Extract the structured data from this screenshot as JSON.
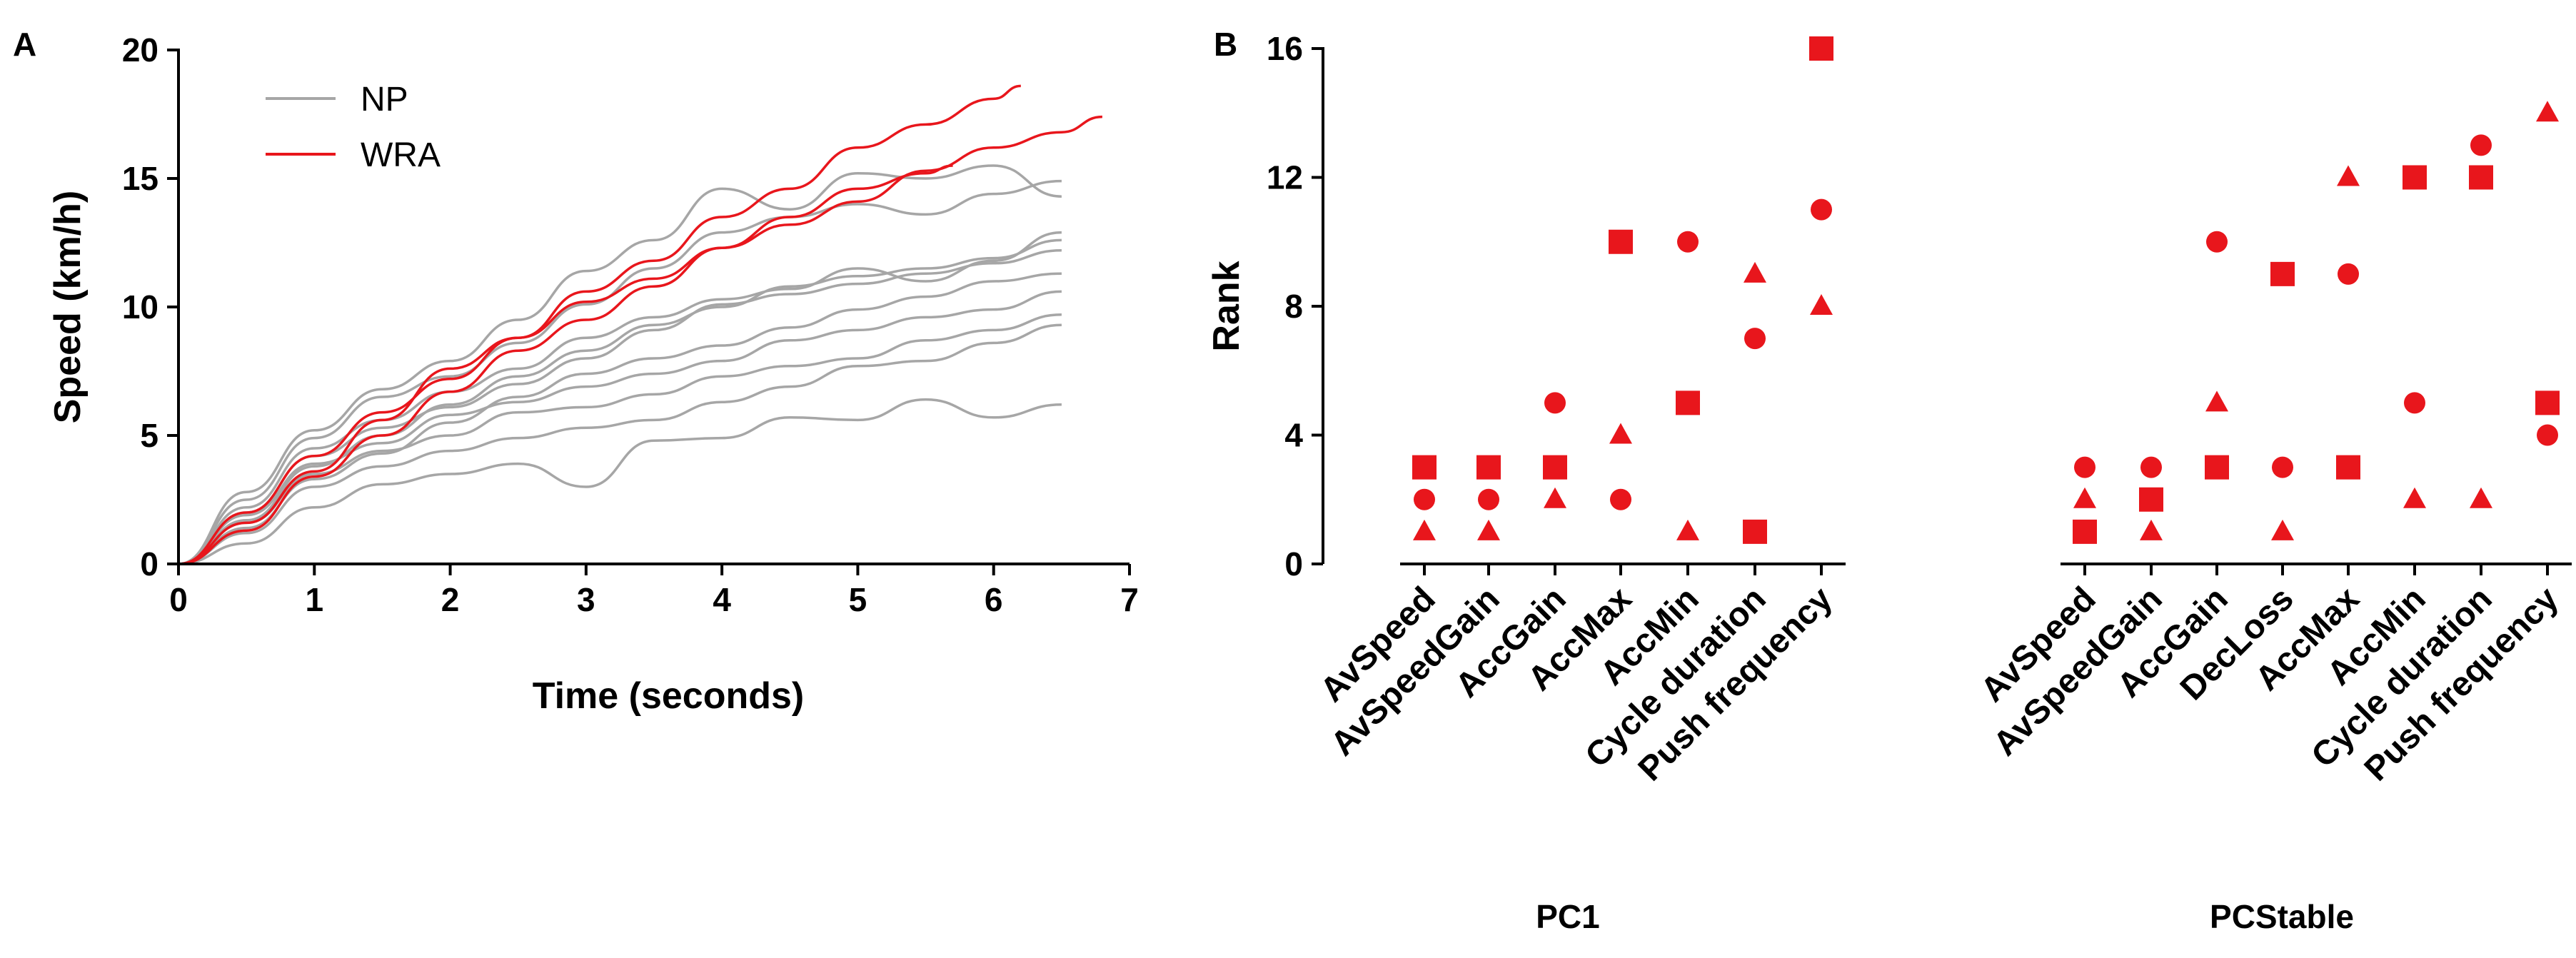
{
  "chart_data": [
    {
      "panel": "A",
      "type": "line",
      "xlabel": "Time  (seconds)",
      "ylabel": "Speed  (km/h)",
      "xlim": [
        0,
        7
      ],
      "ylim": [
        0,
        20
      ],
      "xticks": [
        0,
        1,
        2,
        3,
        4,
        5,
        6,
        7
      ],
      "yticks": [
        0,
        5,
        10,
        15,
        20
      ],
      "legend": [
        {
          "name": "NP",
          "color": "#a6a6a6"
        },
        {
          "name": "WRA",
          "color": "#e8161c"
        }
      ],
      "series": [
        {
          "name": "NP",
          "group": "NP",
          "color": "#a6a6a6",
          "x": [
            0,
            0.5,
            1,
            1.5,
            2,
            2.5,
            3,
            3.5,
            4,
            4.5,
            5,
            5.5,
            6,
            6.5
          ],
          "y": [
            0,
            0.8,
            2.2,
            3.1,
            3.5,
            3.9,
            3.0,
            4.8,
            4.9,
            5.7,
            5.6,
            6.4,
            5.7,
            6.2
          ]
        },
        {
          "name": "NP",
          "group": "NP",
          "color": "#a6a6a6",
          "x": [
            0,
            0.5,
            1,
            1.5,
            2,
            2.5,
            3,
            3.5,
            4,
            4.5,
            5,
            5.5,
            6,
            6.5
          ],
          "y": [
            0,
            1.2,
            3.0,
            3.8,
            4.4,
            4.9,
            5.3,
            5.6,
            6.3,
            6.9,
            7.7,
            7.9,
            8.6,
            9.3
          ]
        },
        {
          "name": "NP",
          "group": "NP",
          "color": "#a6a6a6",
          "x": [
            0,
            0.5,
            1,
            1.5,
            2,
            2.5,
            3,
            3.5,
            4,
            4.5,
            5,
            5.5,
            6,
            6.5
          ],
          "y": [
            0,
            1.6,
            3.5,
            4.4,
            5.0,
            5.9,
            6.1,
            6.6,
            7.3,
            7.7,
            8.0,
            8.7,
            9.1,
            9.7
          ]
        },
        {
          "name": "NP",
          "group": "NP",
          "color": "#a6a6a6",
          "x": [
            0,
            0.5,
            1,
            1.5,
            2,
            2.5,
            3,
            3.5,
            4,
            4.5,
            5,
            5.5,
            6,
            6.5
          ],
          "y": [
            0,
            1.9,
            3.9,
            4.7,
            5.8,
            6.3,
            6.9,
            7.4,
            7.9,
            8.7,
            9.1,
            9.6,
            9.9,
            10.6
          ]
        },
        {
          "name": "NP",
          "group": "NP",
          "color": "#a6a6a6",
          "x": [
            0,
            0.5,
            1,
            1.5,
            2,
            2.5,
            3,
            3.5,
            4,
            4.5,
            5,
            5.5,
            6,
            6.5
          ],
          "y": [
            0,
            1.4,
            3.3,
            4.3,
            5.5,
            6.5,
            7.4,
            8.0,
            8.5,
            9.2,
            9.9,
            10.4,
            11.0,
            11.3
          ]
        },
        {
          "name": "NP",
          "group": "NP",
          "color": "#a6a6a6",
          "x": [
            0,
            0.5,
            1,
            1.5,
            2,
            2.5,
            3,
            3.5,
            4,
            4.5,
            5,
            5.5,
            6,
            6.5
          ],
          "y": [
            0,
            2.0,
            4.2,
            5.3,
            6.1,
            7.0,
            8.0,
            9.1,
            10.1,
            10.5,
            10.9,
            11.3,
            11.7,
            12.2
          ]
        },
        {
          "name": "NP",
          "group": "NP",
          "color": "#a6a6a6",
          "x": [
            0,
            0.5,
            1,
            1.5,
            2,
            2.5,
            3,
            3.5,
            4,
            4.5,
            5,
            5.5,
            6,
            6.5
          ],
          "y": [
            0,
            1.7,
            3.8,
            5.0,
            6.2,
            7.3,
            8.3,
            9.3,
            10.0,
            10.8,
            11.2,
            11.5,
            11.9,
            12.6
          ]
        },
        {
          "name": "NP",
          "group": "NP",
          "color": "#a6a6a6",
          "x": [
            0,
            0.5,
            1,
            1.5,
            2,
            2.5,
            3,
            3.5,
            4,
            4.5,
            5,
            5.5,
            6,
            6.5
          ],
          "y": [
            0,
            2.2,
            4.5,
            5.6,
            6.7,
            7.6,
            8.8,
            9.6,
            10.3,
            10.7,
            11.5,
            11.0,
            11.8,
            12.9
          ]
        },
        {
          "name": "NP",
          "group": "NP",
          "color": "#a6a6a6",
          "x": [
            0,
            0.5,
            1,
            1.5,
            2,
            2.5,
            3,
            3.5,
            4,
            4.5,
            5,
            5.5,
            6,
            6.5
          ],
          "y": [
            0,
            2.5,
            4.9,
            6.5,
            7.3,
            8.6,
            10.1,
            11.5,
            12.9,
            13.5,
            14.0,
            13.6,
            14.4,
            14.9
          ]
        },
        {
          "name": "NP",
          "group": "NP",
          "color": "#a6a6a6",
          "x": [
            0,
            0.5,
            1,
            1.5,
            2,
            2.5,
            3,
            3.5,
            4,
            4.5,
            5,
            5.5,
            6,
            6.5
          ],
          "y": [
            0,
            2.8,
            5.2,
            6.8,
            7.9,
            9.5,
            11.4,
            12.6,
            14.6,
            13.8,
            15.2,
            15.0,
            15.5,
            14.3
          ]
        },
        {
          "name": "WRA",
          "group": "WRA",
          "color": "#e8161c",
          "x": [
            0,
            0.5,
            1,
            1.5,
            2,
            2.5,
            3,
            3.5,
            4,
            4.5,
            5,
            5.5,
            6,
            6.2
          ],
          "y": [
            0,
            2.0,
            4.2,
            5.9,
            7.2,
            8.8,
            10.6,
            11.8,
            13.5,
            14.6,
            16.2,
            17.1,
            18.1,
            18.6
          ]
        },
        {
          "name": "WRA",
          "group": "WRA",
          "color": "#e8161c",
          "x": [
            0,
            0.5,
            1,
            1.5,
            2,
            2.5,
            3,
            3.5,
            4,
            4.5,
            5,
            5.5,
            6,
            6.5,
            6.8
          ],
          "y": [
            0,
            1.6,
            3.6,
            5.6,
            7.6,
            8.8,
            10.2,
            11.1,
            12.3,
            13.2,
            14.1,
            15.3,
            16.2,
            16.8,
            17.4
          ]
        },
        {
          "name": "WRA",
          "group": "WRA",
          "color": "#e8161c",
          "x": [
            0,
            0.5,
            1,
            1.5,
            2,
            2.5,
            3,
            3.5,
            4,
            4.5,
            5,
            5.5,
            5.7
          ],
          "y": [
            0,
            1.3,
            3.4,
            5.0,
            6.7,
            8.3,
            9.5,
            10.8,
            12.3,
            13.5,
            14.6,
            15.2,
            15.5
          ]
        }
      ]
    },
    {
      "panel": "B",
      "type": "scatter",
      "ylabel": "Rank",
      "ylim": [
        0,
        16
      ],
      "yticks": [
        0,
        4,
        8,
        12,
        16
      ],
      "color": "#e8161c",
      "groups": [
        {
          "name": "PC1",
          "categories": [
            "AvSpeed",
            "AvSpeedGain",
            "AccGain",
            "AccMax",
            "AccMin",
            "Cycle duration",
            "Push frequency"
          ],
          "square": [
            3,
            3,
            3,
            10,
            5,
            1,
            16
          ],
          "circle": [
            2,
            2,
            5,
            2,
            10,
            7,
            11
          ],
          "triangle": [
            1,
            1,
            2,
            4,
            1,
            9,
            8
          ]
        },
        {
          "name": "PCStable",
          "categories": [
            "AvSpeed",
            "AvSpeedGain",
            "AccGain",
            "DecLoss",
            "AccMax",
            "AccMin",
            "Cycle duration",
            "Push frequency"
          ],
          "square": [
            1,
            2,
            3,
            9,
            3,
            12,
            12,
            5
          ],
          "circle": [
            3,
            3,
            10,
            3,
            9,
            5,
            13,
            4
          ],
          "triangle": [
            2,
            1,
            5,
            1,
            12,
            2,
            2,
            14
          ]
        }
      ]
    }
  ],
  "labels": {
    "panel_a": "A",
    "panel_b": "B"
  }
}
